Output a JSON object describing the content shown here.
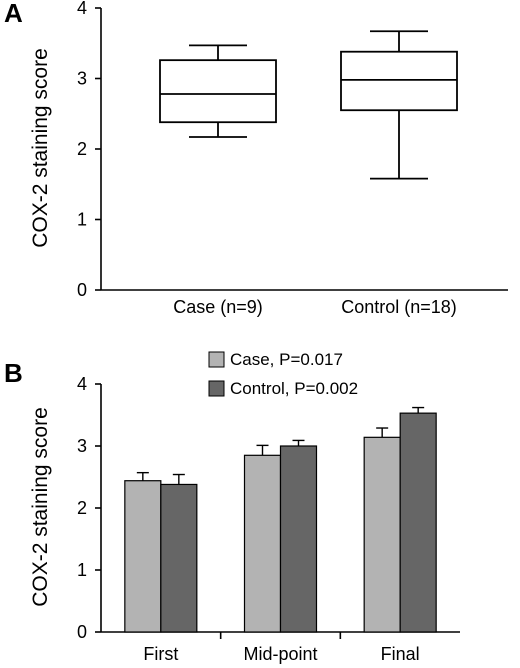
{
  "chart_data": [
    {
      "panel": "A",
      "type": "box",
      "ylabel": "COX-2 staining score",
      "xlabel": "",
      "ylim": [
        0,
        4
      ],
      "yticks": [
        "0",
        "1",
        "2",
        "3",
        "4"
      ],
      "categories": [
        "Case (n=9)",
        "Control (n=18)"
      ],
      "boxes": [
        {
          "whisker_low": 2.17,
          "q1": 2.38,
          "median": 2.78,
          "q3": 3.26,
          "whisker_high": 3.47
        },
        {
          "whisker_low": 1.58,
          "q1": 2.55,
          "median": 2.98,
          "q3": 3.38,
          "whisker_high": 3.67
        }
      ]
    },
    {
      "panel": "B",
      "type": "bar",
      "ylabel": "COX-2 staining score",
      "xlabel": "",
      "ylim": [
        0,
        4
      ],
      "yticks": [
        "0",
        "1",
        "2",
        "3",
        "4"
      ],
      "categories": [
        "First",
        "Mid-point",
        "Final"
      ],
      "series": [
        {
          "name": "Case, P=0.017",
          "color": "#b3b3b3",
          "values": [
            2.44,
            2.85,
            3.14
          ],
          "errors": [
            0.13,
            0.16,
            0.15
          ]
        },
        {
          "name": "Control, P=0.002",
          "color": "#666666",
          "values": [
            2.38,
            3.0,
            3.53
          ],
          "errors": [
            0.16,
            0.09,
            0.09
          ]
        }
      ],
      "legend_position": "top"
    }
  ]
}
